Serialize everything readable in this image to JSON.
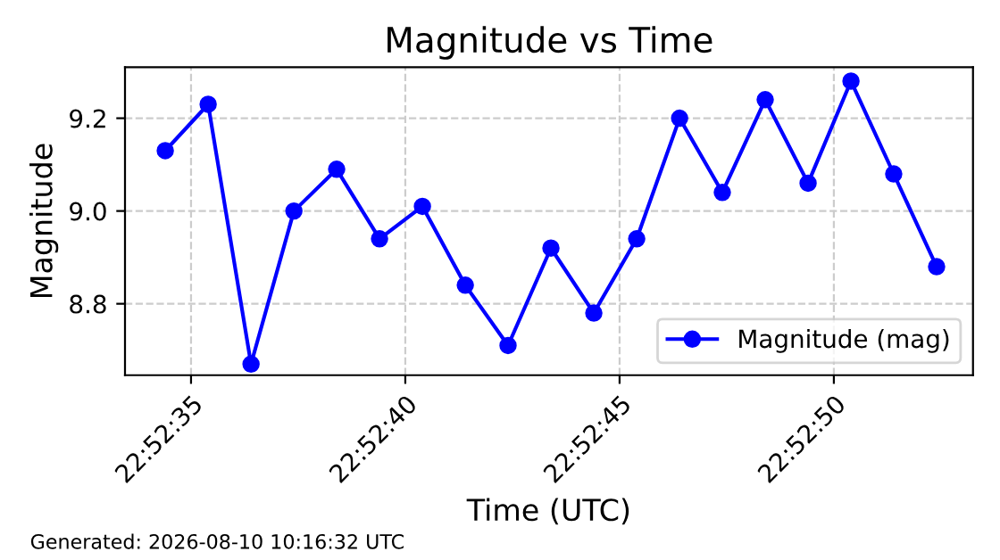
{
  "chart_data": {
    "type": "line",
    "title": "Magnitude vs Time",
    "xlabel": "Time (UTC)",
    "ylabel": "Magnitude",
    "x": [
      22.876222,
      22.8765,
      22.876778,
      22.877056,
      22.877333,
      22.877611,
      22.877889,
      22.878167,
      22.878444,
      22.878722,
      22.879,
      22.879278,
      22.879556,
      22.879833,
      22.880111,
      22.880389,
      22.880667,
      22.880944,
      22.881222
    ],
    "series": [
      {
        "name": "Magnitude (mag)",
        "color": "#0000ff",
        "values": [
          9.13,
          9.23,
          8.67,
          9.0,
          9.09,
          8.94,
          9.01,
          8.84,
          8.71,
          8.92,
          8.78,
          8.94,
          9.2,
          9.04,
          9.24,
          9.06,
          9.28,
          9.08,
          8.88
        ]
      }
    ],
    "xlim": [
      22.875961,
      22.881458
    ],
    "xticks": [
      {
        "value": 22.876389,
        "label": "22:52:35"
      },
      {
        "value": 22.877778,
        "label": "22:52:40"
      },
      {
        "value": 22.879167,
        "label": "22:52:45"
      },
      {
        "value": 22.880556,
        "label": "22:52:50"
      }
    ],
    "ylim": [
      8.646,
      9.31
    ],
    "yticks": [
      {
        "value": 8.8,
        "label": "8.8"
      },
      {
        "value": 9.0,
        "label": "9.0"
      },
      {
        "value": 9.2,
        "label": "9.2"
      }
    ],
    "grid": true,
    "legend": "lower right",
    "marker": "circle",
    "line_style": "solid",
    "annotations": [
      "Generated: 2026-08-10 10:16:32 UTC"
    ]
  }
}
